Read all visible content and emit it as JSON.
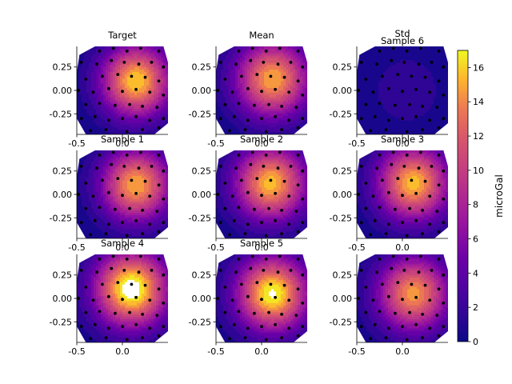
{
  "chart_data": {
    "type": "heatmap",
    "panels": [
      {
        "title": "Target",
        "peak": [
          0.15,
          0.1
        ],
        "amp": 16,
        "spread": 0.36,
        "yticks": true,
        "xticks": true
      },
      {
        "title": "Mean",
        "peak": [
          0.12,
          0.12
        ],
        "amp": 15,
        "spread": 0.38,
        "yticks": true,
        "xticks": true
      },
      {
        "title": "Std",
        "peak": [
          0.05,
          0.0
        ],
        "amp": 1.6,
        "spread": 0.45,
        "yticks": true,
        "xticks": true
      },
      {
        "title": "Sample 1",
        "peak": [
          0.15,
          0.1
        ],
        "amp": 15,
        "spread": 0.36,
        "yticks": true,
        "xticks": true
      },
      {
        "title": "Sample 2",
        "peak": [
          0.1,
          0.12
        ],
        "amp": 15.5,
        "spread": 0.37,
        "yticks": true,
        "xticks": true
      },
      {
        "title": "Sample 3",
        "peak": [
          0.12,
          0.12
        ],
        "amp": 15.5,
        "spread": 0.37,
        "yticks": true,
        "xticks": true
      },
      {
        "title": "Sample 4",
        "peak": [
          0.1,
          0.1
        ],
        "amp": 18,
        "spread": 0.38,
        "yticks": true,
        "xticks": true,
        "white_over": true
      },
      {
        "title": "Sample 5",
        "peak": [
          0.12,
          0.05
        ],
        "amp": 17.2,
        "spread": 0.37,
        "yticks": true,
        "xticks": true,
        "white_over": true
      },
      {
        "title": "Sample 6",
        "peak": [
          0.12,
          0.05
        ],
        "amp": 14.5,
        "spread": 0.37,
        "yticks": true,
        "xticks": true
      }
    ],
    "xlim": [
      -0.5,
      0.5
    ],
    "ylim": [
      -0.47,
      0.47
    ],
    "xticks": [
      "-0.5",
      "0.0"
    ],
    "xtick_values": [
      -0.5,
      0.0
    ],
    "yticks": [
      "0.25",
      "0.00",
      "-0.25"
    ],
    "ytick_values": [
      0.25,
      0.0,
      -0.25
    ],
    "colorbar": {
      "label": "microGal",
      "min": 0,
      "max": 17,
      "ticks": [
        "0",
        "2",
        "4",
        "6",
        "8",
        "10",
        "12",
        "14",
        "16"
      ],
      "tick_values": [
        0,
        2,
        4,
        6,
        8,
        10,
        12,
        14,
        16
      ],
      "colormap": "plasma"
    },
    "station_points": [
      [
        -0.25,
        0.42
      ],
      [
        -0.1,
        0.45
      ],
      [
        0.05,
        0.42
      ],
      [
        0.2,
        0.45
      ],
      [
        0.4,
        0.42
      ],
      [
        -0.45,
        0.3
      ],
      [
        -0.28,
        0.28
      ],
      [
        -0.12,
        0.32
      ],
      [
        0.02,
        0.3
      ],
      [
        0.18,
        0.28
      ],
      [
        0.32,
        0.3
      ],
      [
        0.45,
        0.25
      ],
      [
        -0.4,
        0.12
      ],
      [
        -0.22,
        0.15
      ],
      [
        -0.05,
        0.17
      ],
      [
        0.1,
        0.15
      ],
      [
        0.25,
        0.14
      ],
      [
        0.4,
        0.1
      ],
      [
        -0.48,
        0.0
      ],
      [
        -0.32,
        -0.02
      ],
      [
        -0.15,
        0.02
      ],
      [
        0.0,
        -0.01
      ],
      [
        0.15,
        0.01
      ],
      [
        0.3,
        -0.02
      ],
      [
        0.45,
        -0.05
      ],
      [
        -0.4,
        -0.15
      ],
      [
        -0.25,
        -0.14
      ],
      [
        -0.08,
        -0.16
      ],
      [
        0.08,
        -0.15
      ],
      [
        0.22,
        -0.17
      ],
      [
        0.38,
        -0.18
      ],
      [
        -0.45,
        -0.3
      ],
      [
        -0.3,
        -0.28
      ],
      [
        -0.15,
        -0.32
      ],
      [
        0.0,
        -0.3
      ],
      [
        0.15,
        -0.28
      ],
      [
        0.3,
        -0.32
      ],
      [
        0.45,
        -0.3
      ],
      [
        -0.35,
        -0.43
      ],
      [
        -0.18,
        -0.42
      ],
      [
        0.05,
        -0.44
      ],
      [
        0.22,
        -0.42
      ],
      [
        0.4,
        -0.4
      ]
    ]
  }
}
